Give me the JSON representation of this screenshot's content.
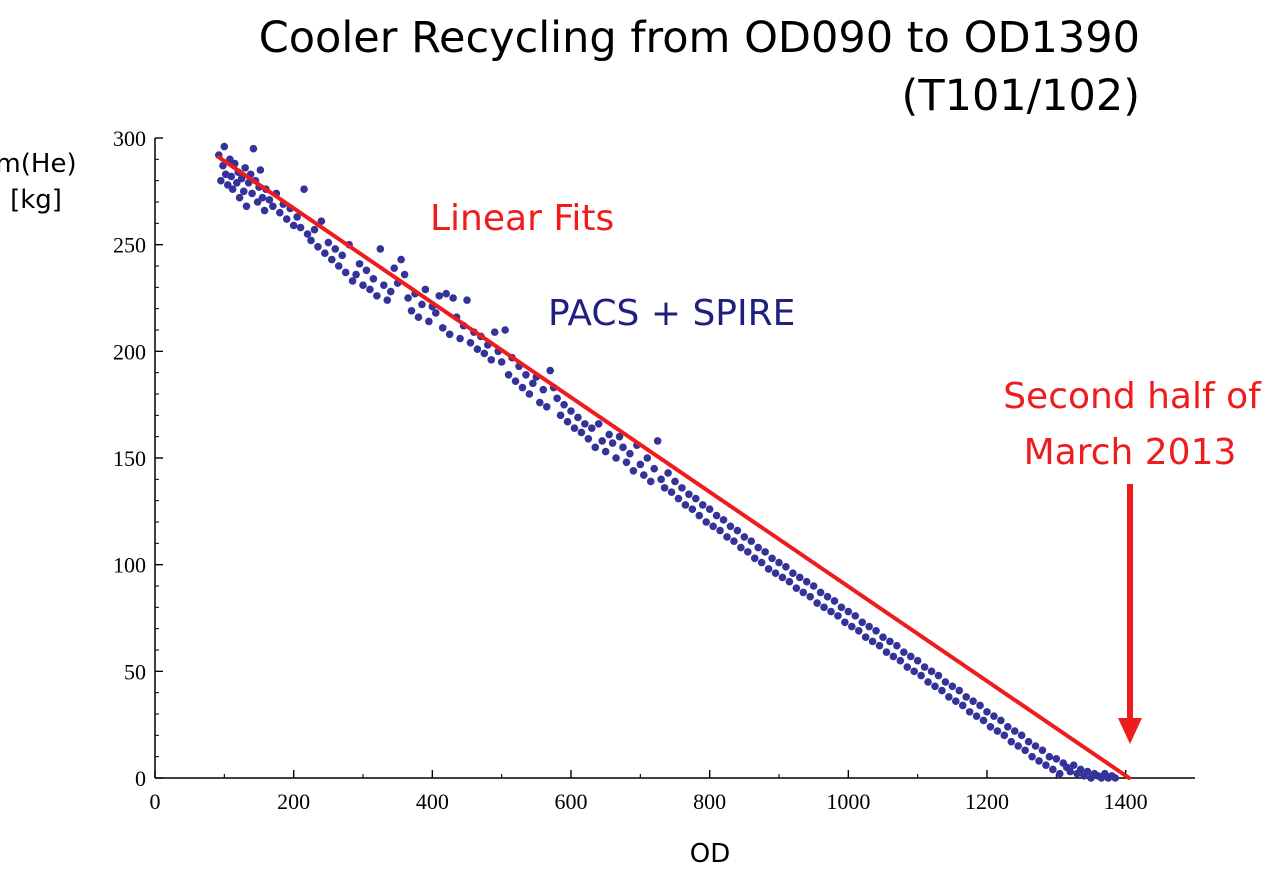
{
  "colors": {
    "points": "#33339a",
    "fit_line": "#ee1c1c",
    "axis": "#000000",
    "annotation_red": "#ee1c1c",
    "annotation_blue": "#1f1f82"
  },
  "chart_data": {
    "type": "scatter",
    "title": [
      "Cooler Recycling from OD090 to OD1390",
      "(T101/102)"
    ],
    "xlabel": "OD",
    "ylabel": [
      "m(He)",
      "[kg]"
    ],
    "xlim": [
      0,
      1500
    ],
    "ylim": [
      0,
      300
    ],
    "x_ticks": [
      0,
      200,
      400,
      600,
      800,
      1000,
      1200,
      1400
    ],
    "y_ticks": [
      0,
      50,
      100,
      150,
      200,
      250,
      300
    ],
    "grid": false,
    "series": [
      {
        "name": "PACS + SPIRE",
        "kind": "scatter",
        "points": [
          [
            92,
            292
          ],
          [
            95,
            280
          ],
          [
            98,
            287
          ],
          [
            100,
            296
          ],
          [
            102,
            283
          ],
          [
            105,
            278
          ],
          [
            108,
            290
          ],
          [
            110,
            282
          ],
          [
            112,
            276
          ],
          [
            115,
            288
          ],
          [
            118,
            279
          ],
          [
            120,
            284
          ],
          [
            122,
            272
          ],
          [
            125,
            281
          ],
          [
            128,
            275
          ],
          [
            130,
            286
          ],
          [
            132,
            268
          ],
          [
            135,
            279
          ],
          [
            138,
            283
          ],
          [
            140,
            274
          ],
          [
            142,
            295
          ],
          [
            145,
            280
          ],
          [
            148,
            270
          ],
          [
            150,
            277
          ],
          [
            152,
            285
          ],
          [
            155,
            272
          ],
          [
            158,
            266
          ],
          [
            160,
            276
          ],
          [
            165,
            271
          ],
          [
            170,
            268
          ],
          [
            175,
            274
          ],
          [
            180,
            265
          ],
          [
            185,
            269
          ],
          [
            190,
            262
          ],
          [
            195,
            267
          ],
          [
            200,
            259
          ],
          [
            205,
            263
          ],
          [
            210,
            258
          ],
          [
            215,
            276
          ],
          [
            220,
            255
          ],
          [
            225,
            252
          ],
          [
            230,
            257
          ],
          [
            235,
            249
          ],
          [
            240,
            261
          ],
          [
            245,
            246
          ],
          [
            250,
            251
          ],
          [
            255,
            243
          ],
          [
            260,
            248
          ],
          [
            265,
            240
          ],
          [
            270,
            245
          ],
          [
            275,
            237
          ],
          [
            280,
            250
          ],
          [
            285,
            233
          ],
          [
            290,
            236
          ],
          [
            295,
            241
          ],
          [
            300,
            231
          ],
          [
            305,
            238
          ],
          [
            310,
            229
          ],
          [
            315,
            234
          ],
          [
            320,
            226
          ],
          [
            325,
            248
          ],
          [
            330,
            231
          ],
          [
            335,
            224
          ],
          [
            340,
            228
          ],
          [
            345,
            239
          ],
          [
            350,
            232
          ],
          [
            355,
            243
          ],
          [
            360,
            236
          ],
          [
            365,
            225
          ],
          [
            370,
            219
          ],
          [
            375,
            227
          ],
          [
            380,
            216
          ],
          [
            385,
            222
          ],
          [
            390,
            229
          ],
          [
            395,
            214
          ],
          [
            400,
            221
          ],
          [
            405,
            218
          ],
          [
            410,
            226
          ],
          [
            415,
            211
          ],
          [
            420,
            227
          ],
          [
            425,
            208
          ],
          [
            430,
            225
          ],
          [
            435,
            216
          ],
          [
            440,
            206
          ],
          [
            445,
            212
          ],
          [
            450,
            224
          ],
          [
            455,
            204
          ],
          [
            460,
            209
          ],
          [
            465,
            201
          ],
          [
            470,
            207
          ],
          [
            475,
            199
          ],
          [
            480,
            203
          ],
          [
            485,
            196
          ],
          [
            490,
            209
          ],
          [
            495,
            200
          ],
          [
            500,
            195
          ],
          [
            505,
            210
          ],
          [
            510,
            189
          ],
          [
            515,
            197
          ],
          [
            520,
            186
          ],
          [
            525,
            193
          ],
          [
            530,
            183
          ],
          [
            535,
            189
          ],
          [
            540,
            180
          ],
          [
            545,
            185
          ],
          [
            550,
            188
          ],
          [
            555,
            176
          ],
          [
            560,
            182
          ],
          [
            565,
            174
          ],
          [
            570,
            191
          ],
          [
            575,
            183
          ],
          [
            580,
            178
          ],
          [
            585,
            170
          ],
          [
            590,
            175
          ],
          [
            595,
            167
          ],
          [
            600,
            172
          ],
          [
            605,
            164
          ],
          [
            610,
            169
          ],
          [
            615,
            162
          ],
          [
            620,
            166
          ],
          [
            625,
            159
          ],
          [
            630,
            164
          ],
          [
            635,
            155
          ],
          [
            640,
            166
          ],
          [
            645,
            158
          ],
          [
            650,
            153
          ],
          [
            655,
            161
          ],
          [
            660,
            157
          ],
          [
            665,
            150
          ],
          [
            670,
            160
          ],
          [
            675,
            155
          ],
          [
            680,
            148
          ],
          [
            685,
            152
          ],
          [
            690,
            144
          ],
          [
            695,
            156
          ],
          [
            700,
            147
          ],
          [
            705,
            142
          ],
          [
            710,
            150
          ],
          [
            715,
            139
          ],
          [
            720,
            145
          ],
          [
            725,
            158
          ],
          [
            730,
            140
          ],
          [
            735,
            136
          ],
          [
            740,
            143
          ],
          [
            745,
            134
          ],
          [
            750,
            139
          ],
          [
            755,
            131
          ],
          [
            760,
            136
          ],
          [
            765,
            128
          ],
          [
            770,
            133
          ],
          [
            775,
            126
          ],
          [
            780,
            131
          ],
          [
            785,
            123
          ],
          [
            790,
            128
          ],
          [
            795,
            120
          ],
          [
            800,
            126
          ],
          [
            805,
            118
          ],
          [
            810,
            123
          ],
          [
            815,
            116
          ],
          [
            820,
            121
          ],
          [
            825,
            113
          ],
          [
            830,
            118
          ],
          [
            835,
            111
          ],
          [
            840,
            116
          ],
          [
            845,
            108
          ],
          [
            850,
            113
          ],
          [
            855,
            106
          ],
          [
            860,
            111
          ],
          [
            865,
            103
          ],
          [
            870,
            108
          ],
          [
            875,
            101
          ],
          [
            880,
            106
          ],
          [
            885,
            98
          ],
          [
            890,
            103
          ],
          [
            895,
            96
          ],
          [
            900,
            101
          ],
          [
            905,
            94
          ],
          [
            910,
            99
          ],
          [
            915,
            92
          ],
          [
            920,
            96
          ],
          [
            925,
            89
          ],
          [
            930,
            94
          ],
          [
            935,
            87
          ],
          [
            940,
            92
          ],
          [
            945,
            85
          ],
          [
            950,
            90
          ],
          [
            955,
            82
          ],
          [
            960,
            87
          ],
          [
            965,
            80
          ],
          [
            970,
            85
          ],
          [
            975,
            78
          ],
          [
            980,
            83
          ],
          [
            985,
            76
          ],
          [
            990,
            80
          ],
          [
            995,
            73
          ],
          [
            1000,
            78
          ],
          [
            1005,
            71
          ],
          [
            1010,
            76
          ],
          [
            1015,
            69
          ],
          [
            1020,
            73
          ],
          [
            1025,
            66
          ],
          [
            1030,
            71
          ],
          [
            1035,
            64
          ],
          [
            1040,
            69
          ],
          [
            1045,
            62
          ],
          [
            1050,
            66
          ],
          [
            1055,
            59
          ],
          [
            1060,
            64
          ],
          [
            1065,
            57
          ],
          [
            1070,
            62
          ],
          [
            1075,
            55
          ],
          [
            1080,
            59
          ],
          [
            1085,
            52
          ],
          [
            1090,
            57
          ],
          [
            1095,
            50
          ],
          [
            1100,
            55
          ],
          [
            1105,
            48
          ],
          [
            1110,
            52
          ],
          [
            1115,
            45
          ],
          [
            1120,
            50
          ],
          [
            1125,
            43
          ],
          [
            1130,
            48
          ],
          [
            1135,
            41
          ],
          [
            1140,
            45
          ],
          [
            1145,
            38
          ],
          [
            1150,
            43
          ],
          [
            1155,
            36
          ],
          [
            1160,
            41
          ],
          [
            1165,
            34
          ],
          [
            1170,
            38
          ],
          [
            1175,
            31
          ],
          [
            1180,
            36
          ],
          [
            1185,
            29
          ],
          [
            1190,
            34
          ],
          [
            1195,
            27
          ],
          [
            1200,
            31
          ],
          [
            1205,
            24
          ],
          [
            1210,
            29
          ],
          [
            1215,
            22
          ],
          [
            1220,
            27
          ],
          [
            1225,
            20
          ],
          [
            1230,
            24
          ],
          [
            1235,
            17
          ],
          [
            1240,
            22
          ],
          [
            1245,
            15
          ],
          [
            1250,
            20
          ],
          [
            1255,
            13
          ],
          [
            1260,
            17
          ],
          [
            1265,
            10
          ],
          [
            1270,
            15
          ],
          [
            1275,
            8
          ],
          [
            1280,
            13
          ],
          [
            1285,
            6
          ],
          [
            1290,
            10
          ],
          [
            1295,
            4
          ],
          [
            1300,
            9
          ],
          [
            1305,
            2
          ],
          [
            1310,
            7
          ],
          [
            1315,
            5
          ],
          [
            1320,
            3
          ],
          [
            1325,
            6
          ],
          [
            1330,
            2
          ],
          [
            1335,
            4
          ],
          [
            1340,
            1
          ],
          [
            1345,
            3
          ],
          [
            1350,
            0
          ],
          [
            1355,
            2
          ],
          [
            1360,
            1
          ],
          [
            1365,
            0
          ],
          [
            1370,
            2
          ],
          [
            1375,
            0
          ],
          [
            1380,
            1
          ],
          [
            1385,
            0
          ]
        ]
      },
      {
        "name": "Linear Fits",
        "kind": "line",
        "points": [
          [
            92,
            291
          ],
          [
            1405,
            0
          ]
        ]
      }
    ],
    "annotations": [
      {
        "text": "Linear Fits",
        "color": "red"
      },
      {
        "text": "PACS + SPIRE",
        "color": "blue"
      },
      {
        "text": [
          "Second half of",
          "March 2013"
        ],
        "color": "red",
        "arrow_to_x": 1405
      }
    ]
  }
}
